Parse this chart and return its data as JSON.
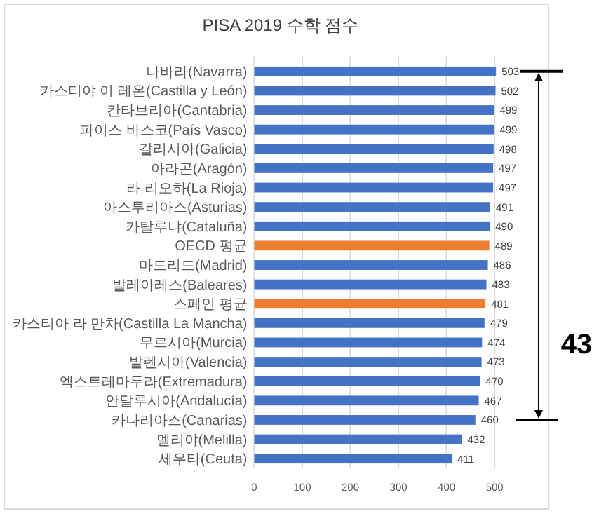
{
  "chart_data": {
    "type": "bar",
    "orientation": "horizontal",
    "title": "PISA 2019 수학 점수",
    "categories": [
      "나바라(Navarra)",
      "카스티야 이 레온(Castilla y León)",
      "칸타브리아(Cantabria)",
      "파이스 바스코(País Vasco)",
      "갈리시아(Galicia)",
      "아라곤(Aragón)",
      "라 리오하(La Rioja)",
      "아스투리아스(Asturias)",
      "카탈루냐(Cataluña)",
      "OECD 평균",
      "마드리드(Madrid)",
      "발레아레스(Baleares)",
      "스페인 평균",
      "카스티아 라 만차(Castilla La Mancha)",
      "무르시아(Murcia)",
      "발렌시아(Valencia)",
      "엑스트레마두라(Extremadura)",
      "안달루시아(Andalucía)",
      "카나리아스(Canarias)",
      "멜리야(Melilla)",
      "세우타(Ceuta)"
    ],
    "values": [
      503,
      502,
      499,
      499,
      498,
      497,
      497,
      491,
      490,
      489,
      486,
      483,
      481,
      479,
      474,
      473,
      470,
      467,
      460,
      432,
      411
    ],
    "colors": [
      "#4472c4",
      "#4472c4",
      "#4472c4",
      "#4472c4",
      "#4472c4",
      "#4472c4",
      "#4472c4",
      "#4472c4",
      "#4472c4",
      "#ed7d31",
      "#4472c4",
      "#4472c4",
      "#ed7d31",
      "#4472c4",
      "#4472c4",
      "#4472c4",
      "#4472c4",
      "#4472c4",
      "#4472c4",
      "#4472c4",
      "#4472c4"
    ],
    "xlim": [
      0,
      510
    ],
    "xticks": [
      0,
      100,
      200,
      300,
      400,
      500
    ],
    "grid": "x",
    "data_labels": true,
    "annotations": [
      "43"
    ]
  }
}
